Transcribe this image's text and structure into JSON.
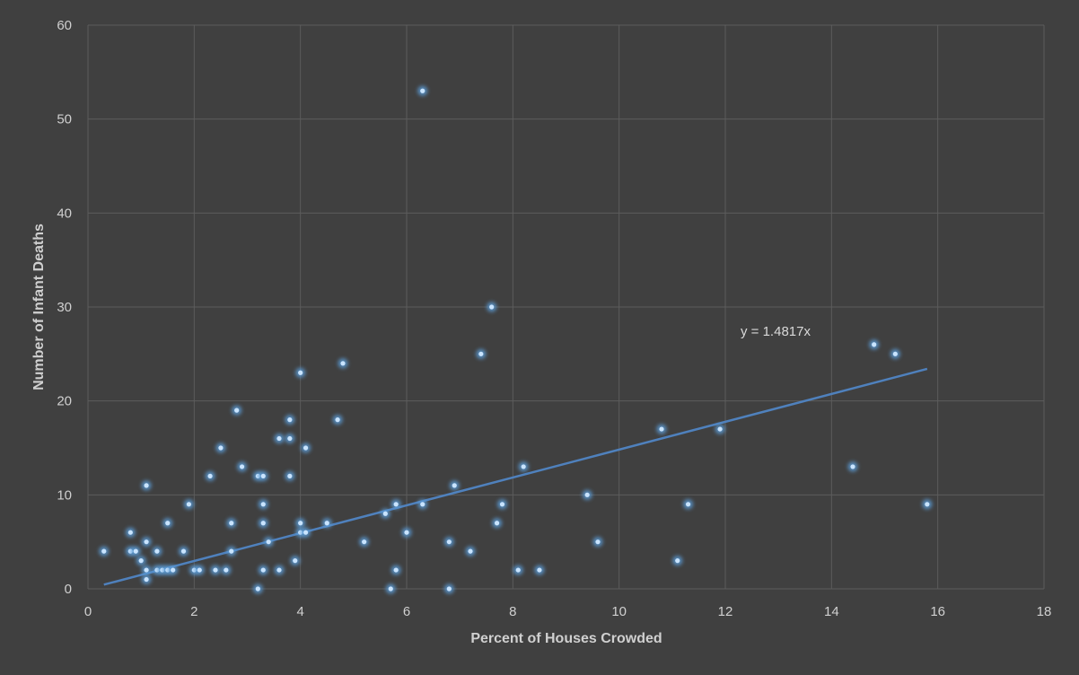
{
  "chart_data": {
    "type": "scatter",
    "title": "",
    "xlabel": "Percent of Houses Crowded",
    "ylabel": "Number of Infant Deaths",
    "xlim": [
      0,
      18
    ],
    "ylim": [
      0,
      60
    ],
    "x_ticks": [
      0,
      2,
      4,
      6,
      8,
      10,
      12,
      14,
      16,
      18
    ],
    "y_ticks": [
      0,
      10,
      20,
      30,
      40,
      50,
      60
    ],
    "grid": true,
    "legend": "none",
    "colors": {
      "background": "#404040",
      "grid": "#5c5c5c",
      "point": "#c9e4ff",
      "point_glow": "#5b9bd5",
      "trendline": "#4f81bd",
      "text": "#d0d0d0"
    },
    "trendline": {
      "slope": 1.4817,
      "intercept": 0,
      "x_range": [
        0.3,
        15.8
      ],
      "equation_label": "y = 1.4817x"
    },
    "points": [
      [
        0.3,
        4
      ],
      [
        0.8,
        6
      ],
      [
        0.8,
        4
      ],
      [
        0.9,
        4
      ],
      [
        1.0,
        3
      ],
      [
        1.1,
        11
      ],
      [
        1.1,
        5
      ],
      [
        1.1,
        2
      ],
      [
        1.1,
        1
      ],
      [
        1.3,
        4
      ],
      [
        1.3,
        2
      ],
      [
        1.4,
        2
      ],
      [
        1.5,
        7
      ],
      [
        1.5,
        2
      ],
      [
        1.6,
        2
      ],
      [
        1.8,
        4
      ],
      [
        1.9,
        9
      ],
      [
        2.0,
        2
      ],
      [
        2.1,
        2
      ],
      [
        2.3,
        12
      ],
      [
        2.4,
        2
      ],
      [
        2.5,
        15
      ],
      [
        2.6,
        2
      ],
      [
        2.7,
        7
      ],
      [
        2.7,
        4
      ],
      [
        2.8,
        19
      ],
      [
        2.9,
        13
      ],
      [
        3.2,
        12
      ],
      [
        3.2,
        0
      ],
      [
        3.3,
        12
      ],
      [
        3.3,
        9
      ],
      [
        3.3,
        7
      ],
      [
        3.3,
        2
      ],
      [
        3.4,
        5
      ],
      [
        3.6,
        16
      ],
      [
        3.6,
        2
      ],
      [
        3.8,
        18
      ],
      [
        3.8,
        16
      ],
      [
        3.8,
        12
      ],
      [
        3.9,
        3
      ],
      [
        4.0,
        23
      ],
      [
        4.0,
        7
      ],
      [
        4.0,
        6
      ],
      [
        4.1,
        15
      ],
      [
        4.1,
        6
      ],
      [
        4.5,
        7
      ],
      [
        4.7,
        18
      ],
      [
        4.8,
        24
      ],
      [
        5.2,
        5
      ],
      [
        5.6,
        8
      ],
      [
        5.7,
        0
      ],
      [
        5.8,
        9
      ],
      [
        5.8,
        2
      ],
      [
        6.0,
        6
      ],
      [
        6.3,
        53
      ],
      [
        6.3,
        9
      ],
      [
        6.8,
        5
      ],
      [
        6.8,
        0
      ],
      [
        6.9,
        11
      ],
      [
        7.2,
        4
      ],
      [
        7.4,
        25
      ],
      [
        7.6,
        30
      ],
      [
        7.7,
        7
      ],
      [
        7.8,
        9
      ],
      [
        8.1,
        2
      ],
      [
        8.2,
        13
      ],
      [
        8.5,
        2
      ],
      [
        9.4,
        10
      ],
      [
        9.6,
        5
      ],
      [
        10.8,
        17
      ],
      [
        11.1,
        3
      ],
      [
        11.3,
        9
      ],
      [
        11.9,
        17
      ],
      [
        14.4,
        13
      ],
      [
        14.8,
        26
      ],
      [
        15.2,
        25
      ],
      [
        15.8,
        9
      ]
    ]
  }
}
